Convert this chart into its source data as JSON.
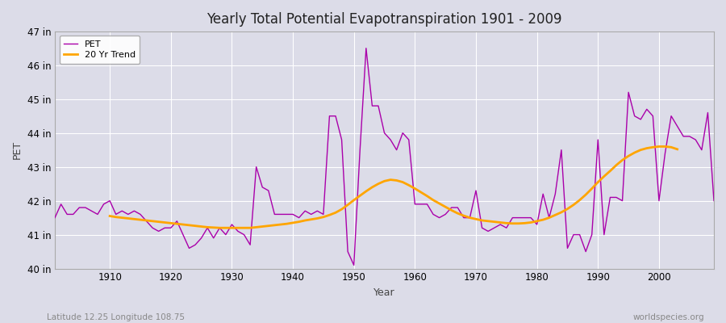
{
  "title": "Yearly Total Potential Evapotranspiration 1901 - 2009",
  "xlabel": "Year",
  "ylabel": "PET",
  "footnote_left": "Latitude 12.25 Longitude 108.75",
  "footnote_right": "worldspecies.org",
  "pet_color": "#AA00AA",
  "trend_color": "#FFA500",
  "background_color": "#DCDCE8",
  "grid_color": "#FFFFFF",
  "ylim": [
    40,
    47
  ],
  "ytick_labels": [
    "40 in",
    "41 in",
    "42 in",
    "43 in",
    "44 in",
    "45 in",
    "46 in",
    "47 in"
  ],
  "ytick_values": [
    40,
    41,
    42,
    43,
    44,
    45,
    46,
    47
  ],
  "xlim": [
    1901,
    2009
  ],
  "years": [
    1901,
    1902,
    1903,
    1904,
    1905,
    1906,
    1907,
    1908,
    1909,
    1910,
    1911,
    1912,
    1913,
    1914,
    1915,
    1916,
    1917,
    1918,
    1919,
    1920,
    1921,
    1922,
    1923,
    1924,
    1925,
    1926,
    1927,
    1928,
    1929,
    1930,
    1931,
    1932,
    1933,
    1934,
    1935,
    1936,
    1937,
    1938,
    1939,
    1940,
    1941,
    1942,
    1943,
    1944,
    1945,
    1946,
    1947,
    1948,
    1949,
    1950,
    1951,
    1952,
    1953,
    1954,
    1955,
    1956,
    1957,
    1958,
    1959,
    1960,
    1961,
    1962,
    1963,
    1964,
    1965,
    1966,
    1967,
    1968,
    1969,
    1970,
    1971,
    1972,
    1973,
    1974,
    1975,
    1976,
    1977,
    1978,
    1979,
    1980,
    1981,
    1982,
    1983,
    1984,
    1985,
    1986,
    1987,
    1988,
    1989,
    1990,
    1991,
    1992,
    1993,
    1994,
    1995,
    1996,
    1997,
    1998,
    1999,
    2000,
    2001,
    2002,
    2003,
    2004,
    2005,
    2006,
    2007,
    2008,
    2009
  ],
  "pet": [
    41.5,
    41.9,
    41.6,
    41.6,
    41.8,
    41.8,
    41.7,
    41.6,
    41.9,
    42.0,
    41.6,
    41.7,
    41.6,
    41.7,
    41.6,
    41.4,
    41.2,
    41.1,
    41.2,
    41.2,
    41.4,
    41.0,
    40.6,
    40.7,
    40.9,
    41.2,
    40.9,
    41.2,
    41.0,
    41.3,
    41.1,
    41.0,
    40.7,
    43.0,
    42.4,
    42.3,
    41.6,
    41.6,
    41.6,
    41.6,
    41.5,
    41.7,
    41.6,
    41.7,
    41.6,
    44.5,
    44.5,
    43.8,
    40.5,
    40.1,
    43.5,
    46.5,
    44.8,
    44.8,
    44.0,
    43.8,
    43.5,
    44.0,
    43.8,
    41.9,
    41.9,
    41.9,
    41.6,
    41.5,
    41.6,
    41.8,
    41.8,
    41.5,
    41.5,
    42.3,
    41.2,
    41.1,
    41.2,
    41.3,
    41.2,
    41.5,
    41.5,
    41.5,
    41.5,
    41.3,
    42.2,
    41.5,
    42.2,
    43.5,
    40.6,
    41.0,
    41.0,
    40.5,
    41.0,
    43.8,
    41.0,
    42.1,
    42.1,
    42.0,
    45.2,
    44.5,
    44.4,
    44.7,
    44.5,
    42.0,
    43.4,
    44.5,
    44.2,
    43.9,
    43.9,
    43.8,
    43.5,
    44.6,
    42.0
  ],
  "trend": [
    null,
    null,
    null,
    null,
    null,
    null,
    null,
    null,
    null,
    41.55,
    41.52,
    41.5,
    41.48,
    41.46,
    41.44,
    41.42,
    41.4,
    41.38,
    41.36,
    41.34,
    41.32,
    41.3,
    41.28,
    41.26,
    41.24,
    41.22,
    41.21,
    41.2,
    41.2,
    41.2,
    41.2,
    41.2,
    41.2,
    41.22,
    41.24,
    41.26,
    41.28,
    41.3,
    41.32,
    41.35,
    41.38,
    41.42,
    41.45,
    41.48,
    41.52,
    41.58,
    41.65,
    41.75,
    41.88,
    42.02,
    42.15,
    42.28,
    42.4,
    42.5,
    42.58,
    42.62,
    42.6,
    42.55,
    42.46,
    42.36,
    42.25,
    42.14,
    42.02,
    41.92,
    41.82,
    41.72,
    41.63,
    41.56,
    41.5,
    41.46,
    41.42,
    41.4,
    41.38,
    41.36,
    41.34,
    41.33,
    41.33,
    41.34,
    41.36,
    41.4,
    41.44,
    41.5,
    41.58,
    41.66,
    41.76,
    41.88,
    42.02,
    42.18,
    42.36,
    42.55,
    42.72,
    42.88,
    43.05,
    43.2,
    43.32,
    43.42,
    43.5,
    43.55,
    43.58,
    43.6,
    43.6,
    43.58,
    43.52,
    null,
    null,
    null,
    null,
    null
  ]
}
